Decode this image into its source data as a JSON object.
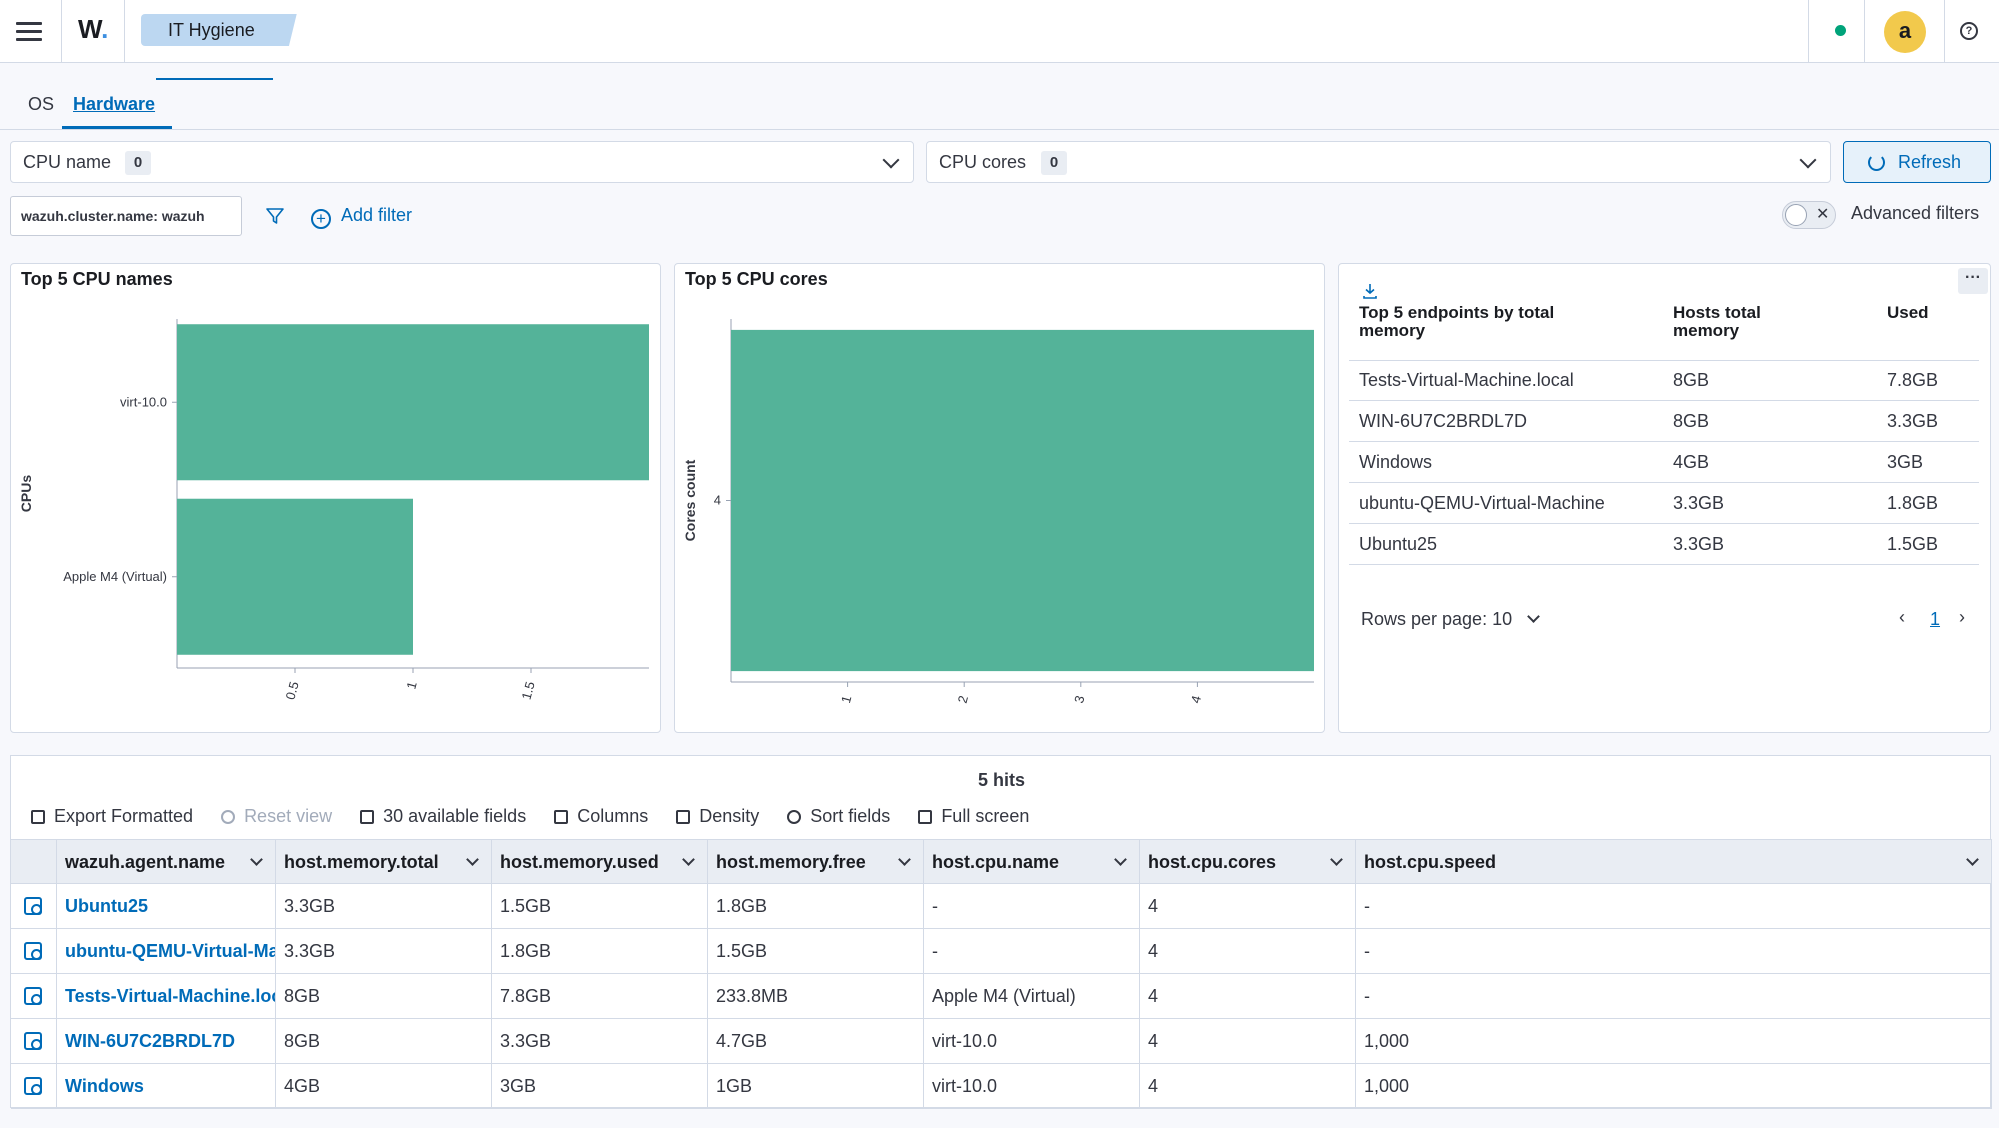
{
  "header": {
    "logo_text": "W",
    "logo_dot": ".",
    "breadcrumb": "IT Hygiene",
    "avatar_initial": "a",
    "help_glyph": "?"
  },
  "tabs": [
    {
      "label": "OS",
      "active": false
    },
    {
      "label": "Hardware",
      "active": true
    }
  ],
  "filters": {
    "cpu_name": {
      "label": "CPU name",
      "count": "0"
    },
    "cpu_cores": {
      "label": "CPU cores",
      "count": "0"
    },
    "refresh_label": "Refresh"
  },
  "query": {
    "chip": "wazuh.cluster.name: wazuh",
    "add_filter_label": "Add filter",
    "advanced_filters_label": "Advanced filters",
    "advanced_filters_on": false
  },
  "panels": {
    "cpu_names": {
      "title": "Top 5 CPU names"
    },
    "cpu_cores": {
      "title": "Top 5 CPU cores"
    },
    "memory": {
      "columns": [
        "Top 5 endpoints by total memory",
        "Hosts total memory",
        "Used"
      ],
      "rows": [
        [
          "Tests-Virtual-Machine.local",
          "8GB",
          "7.8GB"
        ],
        [
          "WIN-6U7C2BRDL7D",
          "8GB",
          "3.3GB"
        ],
        [
          "Windows",
          "4GB",
          "3GB"
        ],
        [
          "ubuntu-QEMU-Virtual-Machine",
          "3.3GB",
          "1.8GB"
        ],
        [
          "Ubuntu25",
          "3.3GB",
          "1.5GB"
        ]
      ],
      "rows_per_page_label": "Rows per page: 10",
      "page": "1"
    }
  },
  "chart_data": [
    {
      "type": "bar",
      "orientation": "horizontal",
      "title": "Top 5 CPU names",
      "ylabel": "CPUs",
      "xlabel": "",
      "categories": [
        "virt-10.0",
        "Apple M4 (Virtual)"
      ],
      "values": [
        2,
        1
      ],
      "x_ticks": [
        "0.5",
        "1",
        "1.5"
      ],
      "xlim": [
        0,
        2
      ],
      "color": "#54b399"
    },
    {
      "type": "bar",
      "orientation": "horizontal",
      "title": "Top 5 CPU cores",
      "ylabel": "Cores count",
      "xlabel": "",
      "categories": [
        "4"
      ],
      "values": [
        5
      ],
      "x_ticks": [
        "1",
        "2",
        "3",
        "4"
      ],
      "xlim": [
        0,
        5
      ],
      "color": "#54b399"
    }
  ],
  "grid": {
    "hits": "5 hits",
    "toolbar": {
      "export": "Export Formatted",
      "reset": "Reset view",
      "fields": "30 available fields",
      "columns": "Columns",
      "density": "Density",
      "sort": "Sort fields",
      "fullscreen": "Full screen"
    },
    "columns": [
      "wazuh.agent.name",
      "host.memory.total",
      "host.memory.used",
      "host.memory.free",
      "host.cpu.name",
      "host.cpu.cores",
      "host.cpu.speed"
    ],
    "rows": [
      [
        "Ubuntu25",
        "3.3GB",
        "1.5GB",
        "1.8GB",
        "-",
        "4",
        "-"
      ],
      [
        "ubuntu-QEMU-Virtual-Machi",
        "3.3GB",
        "1.8GB",
        "1.5GB",
        "-",
        "4",
        "-"
      ],
      [
        "Tests-Virtual-Machine.local",
        "8GB",
        "7.8GB",
        "233.8MB",
        "Apple M4 (Virtual)",
        "4",
        "-"
      ],
      [
        "WIN-6U7C2BRDL7D",
        "8GB",
        "3.3GB",
        "4.7GB",
        "virt-10.0",
        "4",
        "1,000"
      ],
      [
        "Windows",
        "4GB",
        "3GB",
        "1GB",
        "virt-10.0",
        "4",
        "1,000"
      ]
    ]
  }
}
